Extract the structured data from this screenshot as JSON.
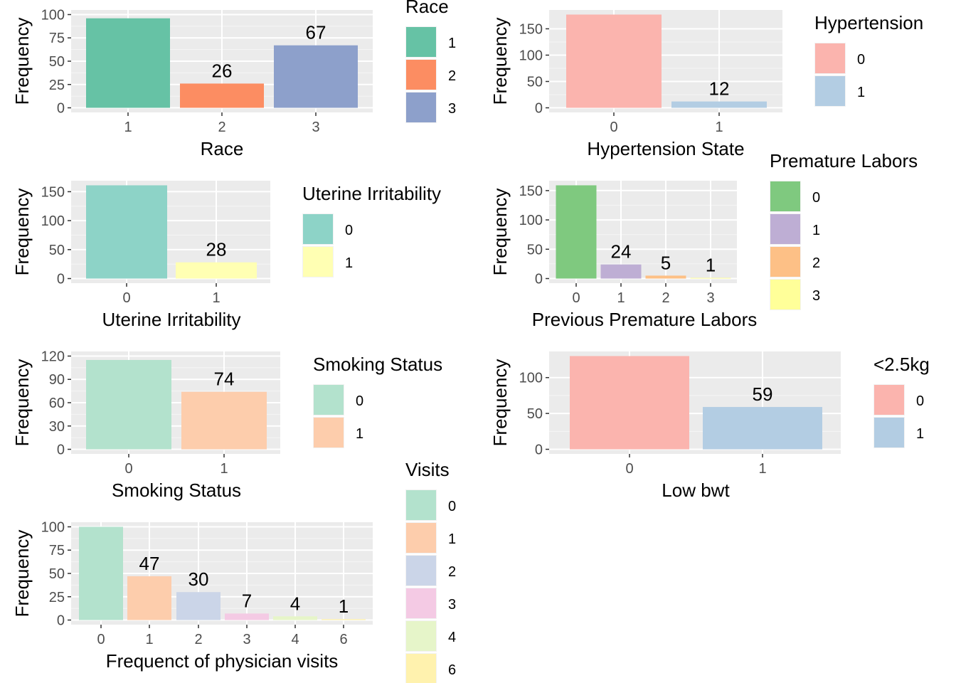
{
  "chart_data": [
    {
      "type": "bar",
      "categories": [
        "1",
        "2",
        "3"
      ],
      "values": [
        96,
        26,
        67
      ],
      "data_labels": [
        "",
        "26",
        "67"
      ],
      "xlabel": "Race",
      "ylabel": "Frequency",
      "ylim": [
        0,
        100
      ],
      "yticks": [
        0,
        25,
        50,
        75,
        100
      ],
      "grid": true,
      "legend": {
        "title": "Race",
        "placement": "right",
        "entries": [
          "1",
          "2",
          "3"
        ]
      },
      "colors": [
        "#66c2a5",
        "#fc8d62",
        "#8da0cb"
      ]
    },
    {
      "type": "bar",
      "categories": [
        "0",
        "1"
      ],
      "values": [
        177,
        12
      ],
      "data_labels": [
        "",
        "12"
      ],
      "xlabel": "Hypertension State",
      "ylabel": "Frequency",
      "ylim": [
        0,
        177
      ],
      "yticks": [
        0,
        50,
        100,
        150
      ],
      "grid": true,
      "legend": {
        "title": "Hypertension",
        "placement": "right",
        "entries": [
          "0",
          "1"
        ]
      },
      "colors": [
        "#fbb4ae",
        "#b3cde3"
      ]
    },
    {
      "type": "bar",
      "categories": [
        "0",
        "1"
      ],
      "values": [
        161,
        28
      ],
      "data_labels": [
        "",
        "28"
      ],
      "xlabel": "Uterine Irritability",
      "ylabel": "Frequency",
      "ylim": [
        0,
        161
      ],
      "yticks": [
        0,
        50,
        100,
        150
      ],
      "grid": true,
      "legend": {
        "title": "Uterine Irritability",
        "placement": "right",
        "entries": [
          "0",
          "1"
        ]
      },
      "colors": [
        "#8dd3c7",
        "#ffffb3"
      ]
    },
    {
      "type": "bar",
      "categories": [
        "0",
        "1",
        "2",
        "3"
      ],
      "values": [
        159,
        24,
        5,
        1
      ],
      "data_labels": [
        "",
        "24",
        "5",
        "1"
      ],
      "xlabel": "Previous Premature Labors",
      "ylabel": "Frequency",
      "ylim": [
        0,
        159
      ],
      "yticks": [
        0,
        50,
        100,
        150
      ],
      "grid": true,
      "legend": {
        "title": "Premature Labors",
        "placement": "right",
        "entries": [
          "0",
          "1",
          "2",
          "3"
        ]
      },
      "colors": [
        "#7fc97f",
        "#beaed4",
        "#fdc086",
        "#ffff99"
      ]
    },
    {
      "type": "bar",
      "categories": [
        "0",
        "1"
      ],
      "values": [
        115,
        74
      ],
      "data_labels": [
        "",
        "74"
      ],
      "xlabel": "Smoking Status",
      "ylabel": "Frequency",
      "ylim": [
        0,
        120
      ],
      "yticks": [
        0,
        30,
        60,
        90,
        120
      ],
      "grid": true,
      "legend": {
        "title": "Smoking Status",
        "placement": "right",
        "entries": [
          "0",
          "1"
        ]
      },
      "colors": [
        "#b3e2cd",
        "#fdcdac"
      ]
    },
    {
      "type": "bar",
      "categories": [
        "0",
        "1"
      ],
      "values": [
        130,
        59
      ],
      "data_labels": [
        "",
        "59"
      ],
      "xlabel": "Low bwt",
      "ylabel": "Frequency",
      "ylim": [
        0,
        130
      ],
      "yticks": [
        0,
        50,
        100
      ],
      "grid": true,
      "legend": {
        "title": "<2.5kg",
        "placement": "right",
        "entries": [
          "0",
          "1"
        ]
      },
      "colors": [
        "#fbb4ae",
        "#b3cde3"
      ]
    },
    {
      "type": "bar",
      "categories": [
        "0",
        "1",
        "2",
        "3",
        "4",
        "6"
      ],
      "values": [
        100,
        47,
        30,
        7,
        4,
        1
      ],
      "data_labels": [
        "",
        "47",
        "30",
        "7",
        "4",
        "1"
      ],
      "xlabel": "Frequenct of physician visits",
      "ylabel": "Frequency",
      "ylim": [
        0,
        100
      ],
      "yticks": [
        0,
        25,
        50,
        75,
        100
      ],
      "grid": true,
      "legend": {
        "title": "Visits",
        "placement": "right",
        "entries": [
          "0",
          "1",
          "2",
          "3",
          "4",
          "6"
        ]
      },
      "colors": [
        "#b3e2cd",
        "#fdcdac",
        "#cbd5e8",
        "#f4cae4",
        "#e6f5c9",
        "#fff2ae"
      ]
    }
  ]
}
